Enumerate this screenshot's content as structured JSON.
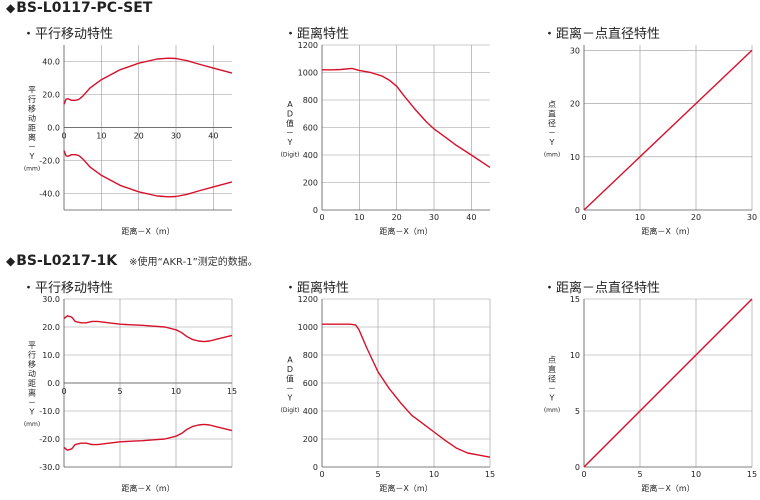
{
  "sections": [
    {
      "title": "BS-L0117-PC-SET",
      "note": ""
    },
    {
      "title": "BS-L0217-1K",
      "note": "※使用“AKR-1”测定的数据。"
    }
  ],
  "colors": {
    "curve": "#d7102a",
    "grid": "#999999",
    "axis": "#555555",
    "text": "#222222"
  },
  "chart_data": [
    {
      "type": "line",
      "title": "・平行移动特性",
      "xlabel": "距离－X（m）",
      "ylabel": "平行移动距离－Y",
      "ylabel_unit": "(mm)",
      "xlim": [
        0,
        45
      ],
      "ylim": [
        -50,
        50
      ],
      "x_ticks": [
        "0",
        "10",
        "20",
        "30",
        "40"
      ],
      "y_ticks": [
        "40.0",
        "20.0",
        "0.0",
        "-20.0",
        "-40.0"
      ],
      "series": [
        {
          "x": [
            0,
            0.5,
            1,
            2,
            3,
            4,
            5,
            7,
            10,
            15,
            20,
            25,
            28,
            30,
            33,
            36,
            40,
            45
          ],
          "y": [
            14,
            17,
            17.5,
            16.5,
            16.5,
            17,
            19,
            24,
            29,
            35,
            39,
            41.5,
            42,
            41.8,
            40.5,
            38.5,
            36,
            33
          ]
        },
        {
          "x": [
            0,
            0.5,
            1,
            2,
            3,
            4,
            5,
            7,
            10,
            15,
            20,
            25,
            28,
            30,
            33,
            36,
            40,
            45
          ],
          "y": [
            -14,
            -17,
            -17.5,
            -16.5,
            -16.5,
            -17,
            -19,
            -24,
            -29,
            -35,
            -39,
            -41.5,
            -42,
            -41.8,
            -40.5,
            -38.5,
            -36,
            -33
          ]
        }
      ]
    },
    {
      "type": "line",
      "title": "・距离特性",
      "xlabel": "距离－X（m）",
      "ylabel": "AD值－Y",
      "ylabel_unit": "(Digit)",
      "xlim": [
        0,
        45
      ],
      "ylim": [
        0,
        1200
      ],
      "x_ticks": [
        "0",
        "10",
        "20",
        "30",
        "40"
      ],
      "y_ticks": [
        "1200",
        "1000",
        "800",
        "600",
        "400",
        "200",
        "0"
      ],
      "series": [
        {
          "x": [
            0,
            3,
            5,
            8,
            10,
            13,
            16,
            18,
            20,
            22,
            25,
            28,
            30,
            33,
            36,
            40,
            45
          ],
          "y": [
            1020,
            1020,
            1022,
            1030,
            1015,
            1000,
            975,
            945,
            900,
            830,
            730,
            640,
            590,
            530,
            470,
            400,
            310
          ]
        }
      ]
    },
    {
      "type": "line",
      "title": "・距离－点直径特性",
      "xlabel": "距离－X（m）",
      "ylabel": "点直径－Y",
      "ylabel_unit": "(mm)",
      "xlim": [
        0,
        30
      ],
      "ylim": [
        0,
        31
      ],
      "x_ticks": [
        "0",
        "10",
        "20",
        "30"
      ],
      "y_ticks": [
        "30",
        "20",
        "10",
        "0"
      ],
      "series": [
        {
          "x": [
            0,
            30
          ],
          "y": [
            0,
            30
          ]
        }
      ]
    },
    {
      "type": "line",
      "title": "・平行移动特性",
      "xlabel": "距离－X（m）",
      "ylabel": "平行移动距离－Y",
      "ylabel_unit": "(mm)",
      "xlim": [
        0,
        15
      ],
      "ylim": [
        -30,
        30
      ],
      "x_ticks": [
        "0",
        "5",
        "10",
        "15"
      ],
      "y_ticks": [
        "30.0",
        "20.0",
        "10.0",
        "0.0",
        "-10.0",
        "-20.0",
        "-30.0"
      ],
      "series": [
        {
          "x": [
            0,
            0.3,
            0.7,
            1,
            1.5,
            2,
            2.5,
            3,
            4,
            5,
            6,
            7,
            8,
            9,
            10,
            10.5,
            11,
            11.5,
            12,
            12.5,
            13,
            13.5,
            14,
            14.5,
            15
          ],
          "y": [
            23,
            24,
            23.5,
            22,
            21.5,
            21.5,
            22,
            22,
            21.5,
            21,
            20.8,
            20.6,
            20.3,
            20,
            19,
            18,
            16.5,
            15.5,
            15,
            14.8,
            15,
            15.5,
            16,
            16.5,
            17
          ]
        },
        {
          "x": [
            0,
            0.3,
            0.7,
            1,
            1.5,
            2,
            2.5,
            3,
            4,
            5,
            6,
            7,
            8,
            9,
            10,
            10.5,
            11,
            11.5,
            12,
            12.5,
            13,
            13.5,
            14,
            14.5,
            15
          ],
          "y": [
            -23,
            -24,
            -23.5,
            -22,
            -21.5,
            -21.5,
            -22,
            -22,
            -21.5,
            -21,
            -20.8,
            -20.6,
            -20.3,
            -20,
            -19,
            -18,
            -16.5,
            -15.5,
            -15,
            -14.8,
            -15,
            -15.5,
            -16,
            -16.5,
            -17
          ]
        }
      ]
    },
    {
      "type": "line",
      "title": "・距离特性",
      "xlabel": "距离－X（m）",
      "ylabel": "AD值－Y",
      "ylabel_unit": "(Digit)",
      "xlim": [
        0,
        15
      ],
      "ylim": [
        0,
        1200
      ],
      "x_ticks": [
        "0",
        "5",
        "10",
        "15"
      ],
      "y_ticks": [
        "1200",
        "1000",
        "800",
        "600",
        "400",
        "200",
        "0"
      ],
      "series": [
        {
          "x": [
            0,
            1,
            2,
            2.5,
            3,
            3.3,
            4,
            5,
            6,
            7,
            8,
            9,
            10,
            11,
            12,
            13,
            14,
            15
          ],
          "y": [
            1020,
            1020,
            1020,
            1020,
            1015,
            980,
            850,
            680,
            560,
            460,
            370,
            310,
            250,
            190,
            135,
            100,
            85,
            70
          ]
        }
      ]
    },
    {
      "type": "line",
      "title": "・距离－点直径特性",
      "xlabel": "距离－X（m）",
      "ylabel": "点直径－Y",
      "ylabel_unit": "(mm)",
      "xlim": [
        0,
        15
      ],
      "ylim": [
        0,
        15
      ],
      "x_ticks": [
        "0",
        "5",
        "10",
        "15"
      ],
      "y_ticks": [
        "15",
        "10",
        "5",
        "0"
      ],
      "series": [
        {
          "x": [
            0,
            15
          ],
          "y": [
            0,
            15
          ]
        }
      ]
    }
  ]
}
